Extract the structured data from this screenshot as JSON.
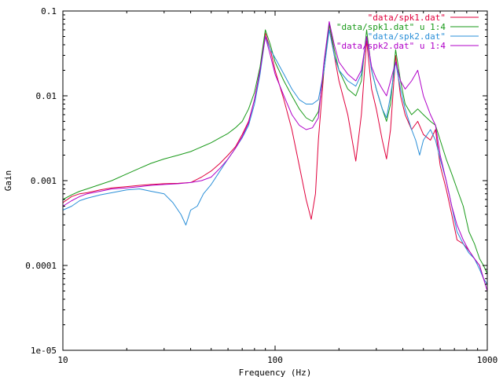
{
  "colors": {
    "spk1_col2": "#e0003c",
    "spk1_col4": "#1a9a1a",
    "spk2_col2": "#2a8fd8",
    "spk2_col4": "#b000c8"
  },
  "chart_data": {
    "type": "line",
    "title": "",
    "xlabel": "Frequency (Hz)",
    "ylabel": "Gain",
    "x_scale": "log",
    "y_scale": "log",
    "xlim": [
      10,
      1000
    ],
    "ylim": [
      1e-05,
      0.1
    ],
    "x_ticks": [
      {
        "value": 10,
        "label": "10"
      },
      {
        "value": 100,
        "label": "100"
      },
      {
        "value": 1000,
        "label": "1000"
      }
    ],
    "y_ticks": [
      {
        "value": 1e-05,
        "label": "1e-05"
      },
      {
        "value": 0.0001,
        "label": "0.0001"
      },
      {
        "value": 0.001,
        "label": "0.001"
      },
      {
        "value": 0.01,
        "label": "0.01"
      },
      {
        "value": 0.1,
        "label": "0.1"
      }
    ],
    "grid": false,
    "legend_position": "top-right",
    "series": [
      {
        "name": "\"data/spk1.dat\"",
        "color_key": "spk1_col2",
        "points": [
          [
            10,
            0.00055
          ],
          [
            11,
            0.00065
          ],
          [
            12,
            0.0007
          ],
          [
            13,
            0.00072
          ],
          [
            15,
            0.00078
          ],
          [
            17,
            0.00082
          ],
          [
            20,
            0.00085
          ],
          [
            23,
            0.00088
          ],
          [
            26,
            0.0009
          ],
          [
            30,
            0.00092
          ],
          [
            35,
            0.00093
          ],
          [
            40,
            0.00095
          ],
          [
            45,
            0.0011
          ],
          [
            50,
            0.0013
          ],
          [
            55,
            0.0016
          ],
          [
            60,
            0.002
          ],
          [
            65,
            0.0025
          ],
          [
            70,
            0.0035
          ],
          [
            75,
            0.005
          ],
          [
            80,
            0.009
          ],
          [
            85,
            0.02
          ],
          [
            90,
            0.055
          ],
          [
            95,
            0.035
          ],
          [
            100,
            0.02
          ],
          [
            110,
            0.009
          ],
          [
            120,
            0.004
          ],
          [
            130,
            0.0015
          ],
          [
            140,
            0.0006
          ],
          [
            148,
            0.00035
          ],
          [
            155,
            0.0007
          ],
          [
            160,
            0.003
          ],
          [
            170,
            0.02
          ],
          [
            180,
            0.07
          ],
          [
            190,
            0.03
          ],
          [
            200,
            0.015
          ],
          [
            220,
            0.006
          ],
          [
            240,
            0.0017
          ],
          [
            255,
            0.006
          ],
          [
            270,
            0.045
          ],
          [
            285,
            0.012
          ],
          [
            300,
            0.007
          ],
          [
            320,
            0.003
          ],
          [
            335,
            0.0018
          ],
          [
            350,
            0.004
          ],
          [
            370,
            0.03
          ],
          [
            390,
            0.01
          ],
          [
            410,
            0.006
          ],
          [
            440,
            0.004
          ],
          [
            470,
            0.005
          ],
          [
            500,
            0.0035
          ],
          [
            540,
            0.003
          ],
          [
            570,
            0.004
          ],
          [
            600,
            0.0015
          ],
          [
            640,
            0.0008
          ],
          [
            680,
            0.0004
          ],
          [
            720,
            0.0002
          ],
          [
            770,
            0.00018
          ],
          [
            820,
            0.00015
          ],
          [
            870,
            0.00012
          ],
          [
            920,
            0.0001
          ],
          [
            960,
            7e-05
          ],
          [
            1000,
            6e-05
          ]
        ]
      },
      {
        "name": "\"data/spk1.dat\" u 1:4",
        "color_key": "spk1_col4",
        "points": [
          [
            10,
            0.0006
          ],
          [
            11,
            0.00068
          ],
          [
            12,
            0.00075
          ],
          [
            13,
            0.0008
          ],
          [
            15,
            0.0009
          ],
          [
            17,
            0.001
          ],
          [
            20,
            0.0012
          ],
          [
            23,
            0.0014
          ],
          [
            26,
            0.0016
          ],
          [
            30,
            0.0018
          ],
          [
            35,
            0.002
          ],
          [
            40,
            0.0022
          ],
          [
            45,
            0.0025
          ],
          [
            50,
            0.0028
          ],
          [
            55,
            0.0032
          ],
          [
            60,
            0.0036
          ],
          [
            65,
            0.0042
          ],
          [
            70,
            0.005
          ],
          [
            75,
            0.007
          ],
          [
            80,
            0.011
          ],
          [
            85,
            0.022
          ],
          [
            90,
            0.06
          ],
          [
            95,
            0.04
          ],
          [
            100,
            0.025
          ],
          [
            110,
            0.015
          ],
          [
            120,
            0.01
          ],
          [
            130,
            0.007
          ],
          [
            140,
            0.0055
          ],
          [
            150,
            0.005
          ],
          [
            160,
            0.0065
          ],
          [
            170,
            0.02
          ],
          [
            180,
            0.07
          ],
          [
            190,
            0.035
          ],
          [
            200,
            0.02
          ],
          [
            220,
            0.012
          ],
          [
            240,
            0.01
          ],
          [
            255,
            0.015
          ],
          [
            270,
            0.06
          ],
          [
            285,
            0.02
          ],
          [
            300,
            0.012
          ],
          [
            320,
            0.007
          ],
          [
            335,
            0.005
          ],
          [
            350,
            0.008
          ],
          [
            370,
            0.035
          ],
          [
            390,
            0.015
          ],
          [
            410,
            0.008
          ],
          [
            440,
            0.006
          ],
          [
            470,
            0.007
          ],
          [
            500,
            0.006
          ],
          [
            540,
            0.005
          ],
          [
            570,
            0.0045
          ],
          [
            600,
            0.003
          ],
          [
            640,
            0.0018
          ],
          [
            680,
            0.0012
          ],
          [
            720,
            0.0008
          ],
          [
            770,
            0.0005
          ],
          [
            820,
            0.00025
          ],
          [
            870,
            0.00018
          ],
          [
            920,
            0.00012
          ],
          [
            960,
            0.0001
          ],
          [
            1000,
            8e-05
          ]
        ]
      },
      {
        "name": "\"data/spk2.dat\"",
        "color_key": "spk2_col2",
        "points": [
          [
            10,
            0.00045
          ],
          [
            11,
            0.0005
          ],
          [
            12,
            0.00058
          ],
          [
            13,
            0.00062
          ],
          [
            15,
            0.00068
          ],
          [
            17,
            0.00072
          ],
          [
            20,
            0.00078
          ],
          [
            23,
            0.0008
          ],
          [
            26,
            0.00075
          ],
          [
            30,
            0.0007
          ],
          [
            33,
            0.00055
          ],
          [
            36,
            0.0004
          ],
          [
            38,
            0.0003
          ],
          [
            40,
            0.00045
          ],
          [
            43,
            0.0005
          ],
          [
            46,
            0.0007
          ],
          [
            50,
            0.0009
          ],
          [
            55,
            0.0013
          ],
          [
            60,
            0.0018
          ],
          [
            65,
            0.0024
          ],
          [
            70,
            0.0032
          ],
          [
            75,
            0.0045
          ],
          [
            80,
            0.008
          ],
          [
            85,
            0.018
          ],
          [
            90,
            0.05
          ],
          [
            95,
            0.035
          ],
          [
            100,
            0.028
          ],
          [
            110,
            0.018
          ],
          [
            120,
            0.012
          ],
          [
            130,
            0.009
          ],
          [
            140,
            0.008
          ],
          [
            150,
            0.008
          ],
          [
            160,
            0.009
          ],
          [
            170,
            0.02
          ],
          [
            180,
            0.06
          ],
          [
            190,
            0.03
          ],
          [
            200,
            0.02
          ],
          [
            220,
            0.015
          ],
          [
            240,
            0.013
          ],
          [
            255,
            0.018
          ],
          [
            270,
            0.05
          ],
          [
            285,
            0.02
          ],
          [
            300,
            0.012
          ],
          [
            320,
            0.007
          ],
          [
            335,
            0.0055
          ],
          [
            350,
            0.01
          ],
          [
            370,
            0.025
          ],
          [
            390,
            0.012
          ],
          [
            410,
            0.007
          ],
          [
            440,
            0.004
          ],
          [
            460,
            0.003
          ],
          [
            480,
            0.002
          ],
          [
            500,
            0.003
          ],
          [
            540,
            0.004
          ],
          [
            570,
            0.003
          ],
          [
            600,
            0.0018
          ],
          [
            640,
            0.001
          ],
          [
            680,
            0.0005
          ],
          [
            720,
            0.00025
          ],
          [
            770,
            0.00018
          ],
          [
            820,
            0.00014
          ],
          [
            870,
            0.00012
          ],
          [
            920,
            9e-05
          ],
          [
            960,
            7e-05
          ],
          [
            1000,
            6e-05
          ]
        ]
      },
      {
        "name": "\"data/spk2.dat\" u 1:4",
        "color_key": "spk2_col4",
        "points": [
          [
            10,
            0.0005
          ],
          [
            11,
            0.00058
          ],
          [
            12,
            0.00065
          ],
          [
            13,
            0.0007
          ],
          [
            15,
            0.00075
          ],
          [
            17,
            0.0008
          ],
          [
            20,
            0.00082
          ],
          [
            23,
            0.00085
          ],
          [
            26,
            0.00088
          ],
          [
            30,
            0.0009
          ],
          [
            35,
            0.00092
          ],
          [
            40,
            0.00095
          ],
          [
            45,
            0.001
          ],
          [
            50,
            0.0011
          ],
          [
            55,
            0.0014
          ],
          [
            60,
            0.0018
          ],
          [
            65,
            0.0024
          ],
          [
            70,
            0.0033
          ],
          [
            75,
            0.0048
          ],
          [
            80,
            0.009
          ],
          [
            85,
            0.02
          ],
          [
            90,
            0.05
          ],
          [
            95,
            0.03
          ],
          [
            100,
            0.018
          ],
          [
            110,
            0.01
          ],
          [
            120,
            0.006
          ],
          [
            130,
            0.0045
          ],
          [
            140,
            0.004
          ],
          [
            150,
            0.0042
          ],
          [
            160,
            0.0055
          ],
          [
            170,
            0.025
          ],
          [
            180,
            0.075
          ],
          [
            190,
            0.04
          ],
          [
            200,
            0.025
          ],
          [
            220,
            0.018
          ],
          [
            240,
            0.015
          ],
          [
            255,
            0.02
          ],
          [
            270,
            0.05
          ],
          [
            285,
            0.022
          ],
          [
            300,
            0.016
          ],
          [
            320,
            0.012
          ],
          [
            335,
            0.01
          ],
          [
            350,
            0.015
          ],
          [
            370,
            0.025
          ],
          [
            390,
            0.015
          ],
          [
            410,
            0.012
          ],
          [
            440,
            0.015
          ],
          [
            470,
            0.02
          ],
          [
            500,
            0.01
          ],
          [
            540,
            0.006
          ],
          [
            570,
            0.0045
          ],
          [
            600,
            0.002
          ],
          [
            640,
            0.001
          ],
          [
            680,
            0.0005
          ],
          [
            720,
            0.0003
          ],
          [
            770,
            0.0002
          ],
          [
            820,
            0.00015
          ],
          [
            870,
            0.00012
          ],
          [
            920,
            0.0001
          ],
          [
            960,
            7e-05
          ],
          [
            1000,
            5e-05
          ]
        ]
      }
    ]
  }
}
